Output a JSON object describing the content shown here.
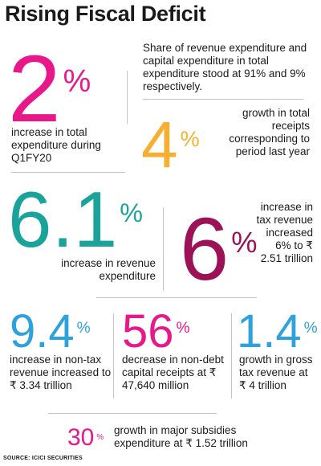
{
  "title": "Rising Fiscal Deficit",
  "colors": {
    "magenta": "#e8178a",
    "orange": "#f5b031",
    "teal": "#1aa39a",
    "maroon": "#9c1257",
    "blue": "#2ea3db"
  },
  "intro_text": "Share of revenue expenditure and capital expenditure in total expenditure stood at 91% and 9% respectively.",
  "stats": {
    "total_expenditure": {
      "value": "2",
      "unit": "%",
      "description": "increase in total expenditure during Q1FY20"
    },
    "total_receipts": {
      "value": "4",
      "unit": "%",
      "description": "growth in total receipts corresponding to period last year"
    },
    "revenue_expenditure": {
      "value": "6.1",
      "unit": "%",
      "description": "increase in revenue expenditure"
    },
    "tax_revenue": {
      "value": "6",
      "unit": "%",
      "description": "increase in tax revenue increased 6% to ₹ 2.51 trillion"
    },
    "non_tax_revenue": {
      "value": "9.4",
      "unit": "%",
      "description": "increase in non-tax revenue increased to ₹ 3.34 trillion"
    },
    "non_debt_capital": {
      "value": "56",
      "unit": "%",
      "description": "decrease in non-debt capital receipts at ₹ 47,640 million"
    },
    "gross_tax": {
      "value": "1.4",
      "unit": "%",
      "description": "growth in gross tax revenue at ₹ 4 trillion"
    },
    "subsidies": {
      "value": "30",
      "unit": "%",
      "description": "growth in major subsidies expenditure at ₹ 1.52 trillion"
    }
  },
  "source": "SOURCE: ICICI SECURITIES"
}
